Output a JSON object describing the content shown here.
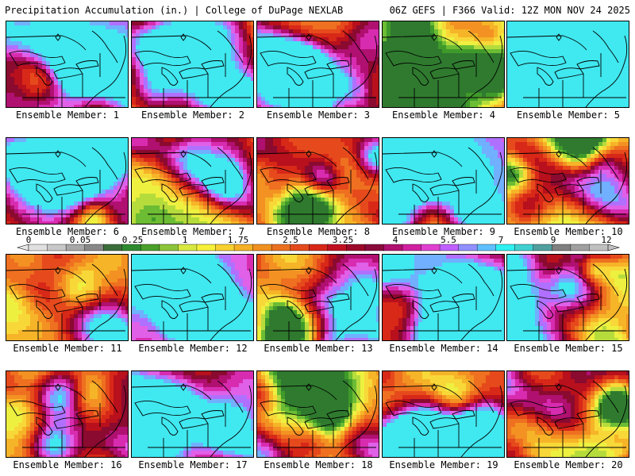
{
  "header": {
    "title": "Precipitation Accumulation (in.) | College of DuPage NEXLAB",
    "run_info": "06Z GEFS | F366 Valid: 12Z MON NOV 24 2025"
  },
  "panels": [
    {
      "label": "Ensemble Member: 1",
      "seed": 11,
      "bias": 0.25
    },
    {
      "label": "Ensemble Member: 2",
      "seed": 23,
      "bias": -0.1
    },
    {
      "label": "Ensemble Member: 3",
      "seed": 37,
      "bias": 0.0
    },
    {
      "label": "Ensemble Member: 4",
      "seed": 41,
      "bias": -0.2
    },
    {
      "label": "Ensemble Member: 5",
      "seed": 53,
      "bias": 0.35
    },
    {
      "label": "Ensemble Member: 6",
      "seed": 67,
      "bias": -0.15
    },
    {
      "label": "Ensemble Member: 7",
      "seed": 71,
      "bias": -0.2
    },
    {
      "label": "Ensemble Member: 8",
      "seed": 83,
      "bias": 0.15
    },
    {
      "label": "Ensemble Member: 9",
      "seed": 97,
      "bias": 0.3
    },
    {
      "label": "Ensemble Member: 10",
      "seed": 101,
      "bias": -0.25
    },
    {
      "label": "Ensemble Member: 11",
      "seed": 113,
      "bias": 0.05
    },
    {
      "label": "Ensemble Member: 12",
      "seed": 127,
      "bias": 0.35
    },
    {
      "label": "Ensemble Member: 13",
      "seed": 131,
      "bias": 0.1
    },
    {
      "label": "Ensemble Member: 14",
      "seed": 149,
      "bias": 0.1
    },
    {
      "label": "Ensemble Member: 15",
      "seed": 157,
      "bias": 0.15
    },
    {
      "label": "Ensemble Member: 16",
      "seed": 163,
      "bias": -0.05
    },
    {
      "label": "Ensemble Member: 17",
      "seed": 173,
      "bias": 0.2
    },
    {
      "label": "Ensemble Member: 18",
      "seed": 181,
      "bias": 0.0
    },
    {
      "label": "Ensemble Member: 19",
      "seed": 191,
      "bias": 0.05
    },
    {
      "label": "Ensemble Member: 20",
      "seed": 199,
      "bias": 0.3
    }
  ],
  "colorbar": {
    "tick_labels": [
      "0",
      "0.05",
      "0.25",
      "1",
      "1.75",
      "2.5",
      "3.25",
      "4",
      "5.5",
      "7",
      "9",
      "12"
    ],
    "colors": [
      "#e0e0e0",
      "#c8c8c8",
      "#a8a8a8",
      "#888888",
      "#3c6e3c",
      "#2f8a2f",
      "#4aa02a",
      "#8cc43a",
      "#d8e840",
      "#f6f03a",
      "#f8d030",
      "#f5b025",
      "#f09020",
      "#ea7020",
      "#e44a1c",
      "#d82818",
      "#c01020",
      "#9c0828",
      "#8a0a3c",
      "#b01070",
      "#d020a0",
      "#e040d0",
      "#c060ff",
      "#9090ff",
      "#60c0ff",
      "#30f0f0",
      "#40d0d0",
      "#50a0a0",
      "#808080",
      "#a0a0a0",
      "#c0c0c0"
    ]
  }
}
